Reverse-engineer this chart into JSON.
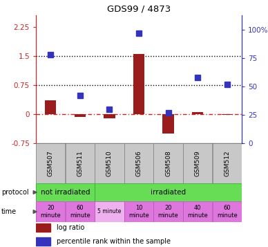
{
  "title": "GDS99 / 4873",
  "samples": [
    "GSM507",
    "GSM511",
    "GSM510",
    "GSM506",
    "GSM508",
    "GSM509",
    "GSM512"
  ],
  "log_ratio": [
    0.35,
    -0.08,
    -0.1,
    1.55,
    -0.5,
    0.05,
    -0.02
  ],
  "percentile_rank": [
    78,
    42,
    30,
    97,
    27,
    58,
    52
  ],
  "bar_color": "#9b1c1c",
  "dot_color": "#3333bb",
  "hline_zero_color": "#cc2222",
  "hline_dotted_color": "black",
  "left_yticks": [
    -0.75,
    0,
    0.75,
    1.5,
    2.25
  ],
  "right_yticks": [
    0,
    25,
    50,
    75,
    100
  ],
  "ylim_left": [
    -0.75,
    2.55
  ],
  "ylim_right": [
    0,
    113
  ],
  "protocol_green": "#66dd55",
  "protocol_border": "#33aa33",
  "time_pink_dark": "#dd77dd",
  "time_pink_light": "#eeb0ee",
  "time_border": "#bb55bb",
  "sample_bg": "#c8c8c8",
  "sample_border": "#888888",
  "time_labels": [
    "20\nminute",
    "60\nminute",
    "5 minute",
    "10\nminute",
    "20\nminute",
    "40\nminute",
    "60\nminute"
  ],
  "time_is_light": [
    false,
    false,
    true,
    false,
    false,
    false,
    false
  ],
  "legend_log_ratio": "log ratio",
  "legend_percentile": "percentile rank within the sample"
}
